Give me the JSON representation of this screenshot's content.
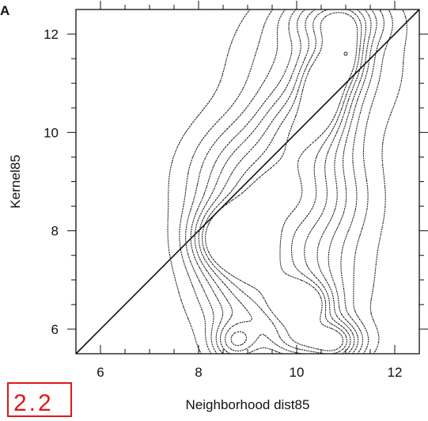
{
  "panel_label": "A",
  "corner_mark": "2.2",
  "chart_data": {
    "type": "contour",
    "title": "",
    "xlabel": "Neighborhood dist85",
    "ylabel": "Kernel85",
    "xlim": [
      5.5,
      12.5
    ],
    "ylim": [
      5.5,
      12.5
    ],
    "x_ticks": [
      6,
      8,
      10,
      12
    ],
    "y_ticks": [
      6,
      8,
      10,
      12
    ],
    "x_tick_labels": [
      "6",
      "8",
      "10",
      "12"
    ],
    "y_tick_labels": [
      "6",
      "8",
      "10",
      "12"
    ],
    "grid": false,
    "legend": "none",
    "reference_line": {
      "from": [
        5.5,
        5.5
      ],
      "to": [
        12.5,
        12.5
      ]
    },
    "contour_peaks": [
      {
        "x": 8.6,
        "y": 7.85
      },
      {
        "x": 10.1,
        "y": 6.5
      },
      {
        "x": 10.55,
        "y": 10.9
      },
      {
        "x": 11.0,
        "y": 11.6
      }
    ]
  }
}
